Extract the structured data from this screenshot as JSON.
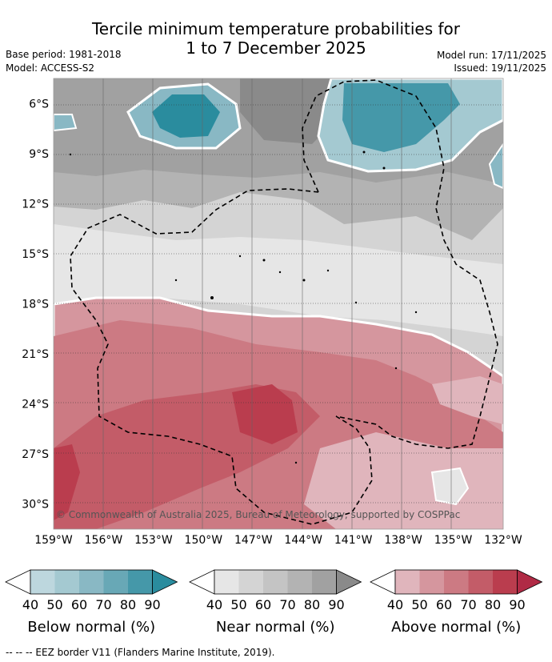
{
  "title": {
    "line1": "Tercile minimum temperature probabilities for",
    "line2": "1 to 7 December 2025"
  },
  "meta": {
    "base_period": "Base period: 1981-2018",
    "model": "Model: ACCESS-S2",
    "model_run": "Model run: 17/11/2025",
    "issued": "Issued: 19/11/2025"
  },
  "map": {
    "credit": "© Commonwealth of Australia 2025, Bureau of Meteorology, supported by COSPPac",
    "lat_labels": [
      "6°S",
      "9°S",
      "12°S",
      "15°S",
      "18°S",
      "21°S",
      "24°S",
      "27°S",
      "30°S"
    ],
    "lon_labels": [
      "159°W",
      "156°W",
      "153°W",
      "150°W",
      "147°W",
      "144°W",
      "141°W",
      "138°W",
      "135°W",
      "132°W"
    ],
    "lat_values": [
      -6,
      -9,
      -12,
      -15,
      -18,
      -21,
      -24,
      -27,
      -30
    ],
    "lon_values": [
      -159,
      -156,
      -153,
      -150,
      -147,
      -144,
      -141,
      -138,
      -135,
      -132
    ],
    "lat_range": [
      -31.5,
      -4.5
    ],
    "lon_range": [
      -159,
      -132
    ]
  },
  "legends": [
    {
      "title": "Below normal (%)",
      "ticks": [
        "40",
        "50",
        "60",
        "70",
        "80",
        "90"
      ],
      "colors": [
        "#ffffff",
        "#bdd7de",
        "#a4c9d1",
        "#89b8c4",
        "#68a8b6",
        "#4598a9",
        "#2a8c9e"
      ]
    },
    {
      "title": "Near normal (%)",
      "ticks": [
        "40",
        "50",
        "60",
        "70",
        "80",
        "90"
      ],
      "colors": [
        "#ffffff",
        "#e6e6e6",
        "#d4d4d4",
        "#c4c4c4",
        "#b3b3b3",
        "#a1a1a1",
        "#8a8a8a"
      ]
    },
    {
      "title": "Above normal (%)",
      "ticks": [
        "40",
        "50",
        "60",
        "70",
        "80",
        "90"
      ],
      "colors": [
        "#ffffff",
        "#e0b5bc",
        "#d5969e",
        "#cc7a83",
        "#c35c68",
        "#ba3d4e",
        "#b02a45"
      ]
    }
  ],
  "footer": "-- -- -- EEZ border V11 (Flanders Marine Institute, 2019)."
}
